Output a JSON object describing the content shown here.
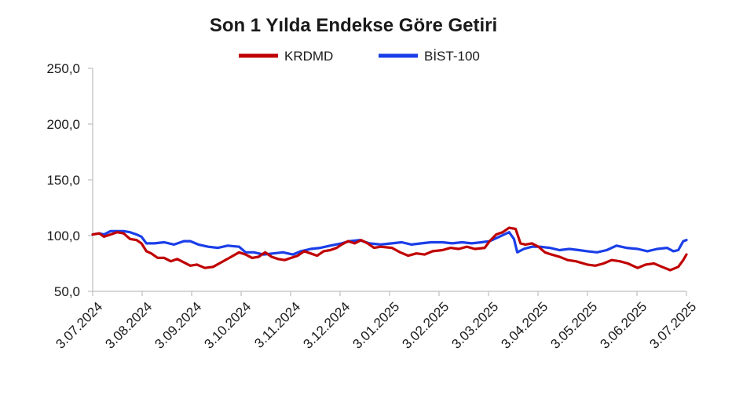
{
  "chart_data": {
    "type": "line",
    "title": "Son 1 Yılda Endekse Göre Getiri",
    "xlabel": "",
    "ylabel": "",
    "ylim": [
      50,
      250
    ],
    "yticks": [
      "50,0",
      "100,0",
      "150,0",
      "200,0",
      "250,0"
    ],
    "ytick_values": [
      50,
      100,
      150,
      200,
      250
    ],
    "xticks": [
      "3.07.2024",
      "3.08.2024",
      "3.09.2024",
      "3.10.2024",
      "3.11.2024",
      "3.12.2024",
      "3.01.2025",
      "3.02.2025",
      "3.03.2025",
      "3.04.2025",
      "3.05.2025",
      "3.06.2025",
      "3.07.2025"
    ],
    "grid": false,
    "legend_position": "top-center",
    "series": [
      {
        "name": "KRDMD",
        "color": "#c00000",
        "points": [
          [
            "2024-07-03",
            101
          ],
          [
            "2024-07-07",
            102
          ],
          [
            "2024-07-10",
            99
          ],
          [
            "2024-07-14",
            101
          ],
          [
            "2024-07-18",
            103
          ],
          [
            "2024-07-22",
            102
          ],
          [
            "2024-07-26",
            97
          ],
          [
            "2024-07-30",
            96
          ],
          [
            "2024-08-02",
            93
          ],
          [
            "2024-08-05",
            86
          ],
          [
            "2024-08-08",
            84
          ],
          [
            "2024-08-12",
            80
          ],
          [
            "2024-08-16",
            80
          ],
          [
            "2024-08-20",
            77
          ],
          [
            "2024-08-24",
            79
          ],
          [
            "2024-08-28",
            76
          ],
          [
            "2024-09-01",
            73
          ],
          [
            "2024-09-05",
            74
          ],
          [
            "2024-09-10",
            71
          ],
          [
            "2024-09-15",
            72
          ],
          [
            "2024-09-20",
            76
          ],
          [
            "2024-09-25",
            80
          ],
          [
            "2024-10-01",
            85
          ],
          [
            "2024-10-05",
            83
          ],
          [
            "2024-10-09",
            80
          ],
          [
            "2024-10-13",
            81
          ],
          [
            "2024-10-17",
            85
          ],
          [
            "2024-10-21",
            81
          ],
          [
            "2024-10-25",
            79
          ],
          [
            "2024-10-29",
            78
          ],
          [
            "2024-11-02",
            80
          ],
          [
            "2024-11-06",
            82
          ],
          [
            "2024-11-10",
            86
          ],
          [
            "2024-11-14",
            84
          ],
          [
            "2024-11-18",
            82
          ],
          [
            "2024-11-22",
            86
          ],
          [
            "2024-11-26",
            87
          ],
          [
            "2024-11-30",
            89
          ],
          [
            "2024-12-03",
            92
          ],
          [
            "2024-12-07",
            95
          ],
          [
            "2024-12-11",
            93
          ],
          [
            "2024-12-15",
            96
          ],
          [
            "2024-12-19",
            93
          ],
          [
            "2024-12-23",
            89
          ],
          [
            "2024-12-27",
            90
          ],
          [
            "2025-01-03",
            89
          ],
          [
            "2025-01-08",
            85
          ],
          [
            "2025-01-13",
            82
          ],
          [
            "2025-01-18",
            84
          ],
          [
            "2025-01-23",
            83
          ],
          [
            "2025-01-28",
            86
          ],
          [
            "2025-02-03",
            87
          ],
          [
            "2025-02-08",
            89
          ],
          [
            "2025-02-13",
            88
          ],
          [
            "2025-02-18",
            90
          ],
          [
            "2025-02-23",
            88
          ],
          [
            "2025-03-01",
            89
          ],
          [
            "2025-03-04",
            95
          ],
          [
            "2025-03-08",
            101
          ],
          [
            "2025-03-12",
            103
          ],
          [
            "2025-03-16",
            107
          ],
          [
            "2025-03-20",
            106
          ],
          [
            "2025-03-23",
            93
          ],
          [
            "2025-03-26",
            92
          ],
          [
            "2025-03-30",
            93
          ],
          [
            "2025-04-03",
            90
          ],
          [
            "2025-04-07",
            85
          ],
          [
            "2025-04-11",
            83
          ],
          [
            "2025-04-16",
            81
          ],
          [
            "2025-04-21",
            78
          ],
          [
            "2025-04-26",
            77
          ],
          [
            "2025-05-03",
            74
          ],
          [
            "2025-05-08",
            73
          ],
          [
            "2025-05-13",
            75
          ],
          [
            "2025-05-18",
            78
          ],
          [
            "2025-05-23",
            77
          ],
          [
            "2025-05-28",
            75
          ],
          [
            "2025-06-03",
            71
          ],
          [
            "2025-06-08",
            74
          ],
          [
            "2025-06-13",
            75
          ],
          [
            "2025-06-18",
            72
          ],
          [
            "2025-06-23",
            69
          ],
          [
            "2025-06-28",
            72
          ],
          [
            "2025-07-01",
            78
          ],
          [
            "2025-07-03",
            83
          ]
        ]
      },
      {
        "name": "BİST-100",
        "color": "#1a3ee8",
        "points": [
          [
            "2024-07-03",
            101
          ],
          [
            "2024-07-07",
            102
          ],
          [
            "2024-07-10",
            101
          ],
          [
            "2024-07-14",
            104
          ],
          [
            "2024-07-18",
            104
          ],
          [
            "2024-07-22",
            104
          ],
          [
            "2024-07-26",
            103
          ],
          [
            "2024-07-30",
            101
          ],
          [
            "2024-08-02",
            99
          ],
          [
            "2024-08-05",
            93
          ],
          [
            "2024-08-10",
            93
          ],
          [
            "2024-08-16",
            94
          ],
          [
            "2024-08-22",
            92
          ],
          [
            "2024-08-28",
            95
          ],
          [
            "2024-09-01",
            95
          ],
          [
            "2024-09-06",
            92
          ],
          [
            "2024-09-12",
            90
          ],
          [
            "2024-09-18",
            89
          ],
          [
            "2024-09-24",
            91
          ],
          [
            "2024-10-01",
            90
          ],
          [
            "2024-10-05",
            85
          ],
          [
            "2024-10-10",
            85
          ],
          [
            "2024-10-16",
            83
          ],
          [
            "2024-10-22",
            84
          ],
          [
            "2024-10-28",
            85
          ],
          [
            "2024-11-03",
            83
          ],
          [
            "2024-11-08",
            86
          ],
          [
            "2024-11-14",
            88
          ],
          [
            "2024-11-20",
            89
          ],
          [
            "2024-11-26",
            91
          ],
          [
            "2024-12-03",
            93
          ],
          [
            "2024-12-08",
            95
          ],
          [
            "2024-12-14",
            96
          ],
          [
            "2024-12-20",
            93
          ],
          [
            "2024-12-27",
            92
          ],
          [
            "2025-01-03",
            93
          ],
          [
            "2025-01-09",
            94
          ],
          [
            "2025-01-15",
            92
          ],
          [
            "2025-01-21",
            93
          ],
          [
            "2025-01-27",
            94
          ],
          [
            "2025-02-03",
            94
          ],
          [
            "2025-02-09",
            93
          ],
          [
            "2025-02-15",
            94
          ],
          [
            "2025-02-21",
            93
          ],
          [
            "2025-02-27",
            94
          ],
          [
            "2025-03-04",
            95
          ],
          [
            "2025-03-10",
            99
          ],
          [
            "2025-03-16",
            103
          ],
          [
            "2025-03-19",
            97
          ],
          [
            "2025-03-21",
            85
          ],
          [
            "2025-03-25",
            88
          ],
          [
            "2025-03-30",
            90
          ],
          [
            "2025-04-04",
            90
          ],
          [
            "2025-04-10",
            89
          ],
          [
            "2025-04-16",
            87
          ],
          [
            "2025-04-22",
            88
          ],
          [
            "2025-04-28",
            87
          ],
          [
            "2025-05-03",
            86
          ],
          [
            "2025-05-09",
            85
          ],
          [
            "2025-05-15",
            87
          ],
          [
            "2025-05-21",
            91
          ],
          [
            "2025-05-27",
            89
          ],
          [
            "2025-06-03",
            88
          ],
          [
            "2025-06-09",
            86
          ],
          [
            "2025-06-15",
            88
          ],
          [
            "2025-06-21",
            89
          ],
          [
            "2025-06-25",
            86
          ],
          [
            "2025-06-28",
            87
          ],
          [
            "2025-07-01",
            95
          ],
          [
            "2025-07-03",
            96
          ]
        ]
      }
    ]
  }
}
